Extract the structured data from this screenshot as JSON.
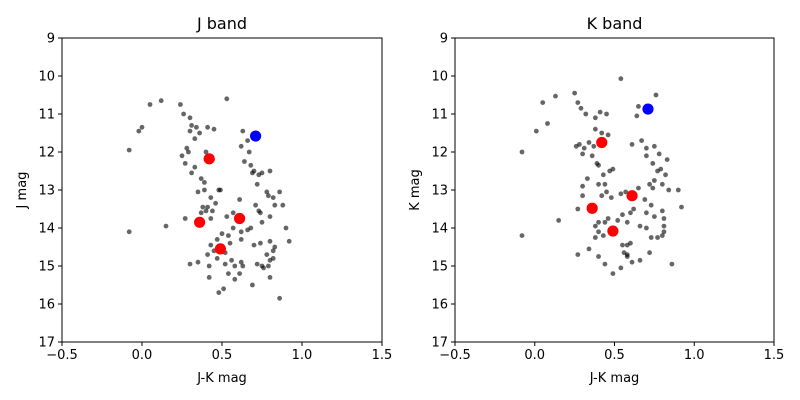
{
  "chart_data": [
    {
      "type": "scatter",
      "title": "J band",
      "xlabel": "J-K mag",
      "ylabel": "J mag",
      "xlim": [
        -0.5,
        1.5
      ],
      "ylim": [
        17,
        9
      ],
      "y_inverted": true,
      "xticks": [
        -0.5,
        0.0,
        0.5,
        1.0,
        1.5
      ],
      "xtick_labels": [
        "−0.5",
        "0.0",
        "0.5",
        "1.0",
        "1.5"
      ],
      "yticks": [
        9,
        10,
        11,
        12,
        13,
        14,
        15,
        16,
        17
      ],
      "ytick_labels": [
        "9",
        "10",
        "11",
        "12",
        "13",
        "14",
        "15",
        "16",
        "17"
      ],
      "grid": false,
      "series": [
        {
          "color": "#000000",
          "alpha": 0.6,
          "marker": "small",
          "points": [
            [
              0.12,
              10.65
            ],
            [
              0.05,
              10.75
            ],
            [
              0.24,
              10.75
            ],
            [
              -0.02,
              11.45
            ],
            [
              0.0,
              11.35
            ],
            [
              0.26,
              11.0
            ],
            [
              0.3,
              11.1
            ],
            [
              0.31,
              11.3
            ],
            [
              0.3,
              11.45
            ],
            [
              0.34,
              11.35
            ],
            [
              0.36,
              11.5
            ],
            [
              0.41,
              11.35
            ],
            [
              0.45,
              11.4
            ],
            [
              0.53,
              10.6
            ],
            [
              0.63,
              11.45
            ],
            [
              0.66,
              11.7
            ],
            [
              -0.08,
              11.95
            ],
            [
              0.33,
              11.65
            ],
            [
              0.28,
              11.9
            ],
            [
              0.25,
              12.1
            ],
            [
              0.29,
              12.0
            ],
            [
              0.27,
              12.3
            ],
            [
              0.4,
              12.0
            ],
            [
              0.44,
              12.2
            ],
            [
              0.62,
              11.85
            ],
            [
              0.67,
              12.0
            ],
            [
              0.64,
              12.25
            ],
            [
              0.69,
              12.55
            ],
            [
              0.68,
              12.35
            ],
            [
              0.7,
              12.5
            ],
            [
              0.73,
              12.6
            ],
            [
              0.75,
              12.55
            ],
            [
              0.8,
              12.5
            ],
            [
              0.72,
              12.85
            ],
            [
              0.78,
              13.05
            ],
            [
              0.79,
              13.15
            ],
            [
              0.82,
              13.2
            ],
            [
              0.86,
              13.05
            ],
            [
              0.83,
              13.4
            ],
            [
              0.88,
              13.4
            ],
            [
              0.33,
              12.4
            ],
            [
              0.31,
              12.55
            ],
            [
              0.37,
              12.7
            ],
            [
              0.39,
              12.8
            ],
            [
              0.35,
              13.05
            ],
            [
              0.39,
              13.0
            ],
            [
              0.48,
              13.0
            ],
            [
              0.49,
              13.0
            ],
            [
              0.43,
              13.2
            ],
            [
              0.46,
              13.35
            ],
            [
              0.38,
              13.45
            ],
            [
              0.41,
              13.45
            ],
            [
              0.44,
              13.55
            ],
            [
              0.37,
              13.6
            ],
            [
              0.43,
              13.75
            ],
            [
              0.53,
              13.7
            ],
            [
              0.61,
              13.25
            ],
            [
              0.57,
              13.6
            ],
            [
              0.71,
              13.4
            ],
            [
              0.73,
              13.55
            ],
            [
              0.74,
              13.6
            ],
            [
              0.8,
              13.7
            ],
            [
              0.75,
              13.85
            ],
            [
              0.68,
              14.0
            ],
            [
              0.62,
              14.1
            ],
            [
              0.57,
              14.0
            ],
            [
              0.5,
              14.15
            ],
            [
              0.47,
              14.3
            ],
            [
              0.54,
              14.2
            ],
            [
              0.62,
              14.3
            ],
            [
              0.55,
              14.4
            ],
            [
              0.43,
              14.45
            ],
            [
              0.41,
              14.7
            ],
            [
              0.42,
              15.0
            ],
            [
              0.35,
              14.9
            ],
            [
              0.3,
              14.95
            ],
            [
              0.27,
              13.75
            ],
            [
              0.15,
              13.95
            ],
            [
              -0.08,
              14.1
            ],
            [
              0.4,
              13.55
            ],
            [
              0.45,
              14.6
            ],
            [
              0.47,
              14.8
            ],
            [
              0.52,
              14.65
            ],
            [
              0.56,
              14.85
            ],
            [
              0.58,
              15.0
            ],
            [
              0.62,
              14.9
            ],
            [
              0.63,
              15.0
            ],
            [
              0.7,
              14.45
            ],
            [
              0.72,
              14.95
            ],
            [
              0.75,
              15.0
            ],
            [
              0.78,
              14.7
            ],
            [
              0.8,
              14.85
            ],
            [
              0.79,
              15.0
            ],
            [
              0.82,
              14.6
            ],
            [
              0.83,
              14.5
            ],
            [
              0.82,
              14.8
            ],
            [
              0.8,
              14.35
            ],
            [
              0.9,
              14.0
            ],
            [
              0.92,
              14.35
            ],
            [
              0.54,
              15.2
            ],
            [
              0.42,
              15.3
            ],
            [
              0.51,
              15.6
            ],
            [
              0.48,
              15.7
            ],
            [
              0.58,
              15.35
            ],
            [
              0.61,
              15.2
            ],
            [
              0.69,
              15.5
            ],
            [
              0.86,
              15.85
            ],
            [
              0.8,
              15.3
            ],
            [
              0.76,
              15.05
            ],
            [
              0.52,
              14.95
            ],
            [
              0.74,
              14.4
            ],
            [
              0.66,
              14.05
            ]
          ]
        },
        {
          "color": "#ff0000",
          "marker": "large",
          "points": [
            [
              0.42,
              12.18
            ],
            [
              0.36,
              13.85
            ],
            [
              0.61,
              13.75
            ],
            [
              0.49,
              14.55
            ]
          ]
        },
        {
          "color": "#0000ff",
          "marker": "large",
          "points": [
            [
              0.71,
              11.58
            ]
          ]
        }
      ]
    },
    {
      "type": "scatter",
      "title": "K band",
      "xlabel": "J-K mag",
      "ylabel": "K mag",
      "xlim": [
        -0.5,
        1.5
      ],
      "ylim": [
        17,
        9
      ],
      "y_inverted": true,
      "xticks": [
        -0.5,
        0.0,
        0.5,
        1.0,
        1.5
      ],
      "xtick_labels": [
        "−0.5",
        "0.0",
        "0.5",
        "1.0",
        "1.5"
      ],
      "yticks": [
        9,
        10,
        11,
        12,
        13,
        14,
        15,
        16,
        17
      ],
      "ytick_labels": [
        "9",
        "10",
        "11",
        "12",
        "13",
        "14",
        "15",
        "16",
        "17"
      ],
      "grid": false,
      "series": [
        {
          "color": "#000000",
          "alpha": 0.6,
          "marker": "small",
          "points": [
            [
              0.54,
              10.07
            ],
            [
              0.25,
              10.45
            ],
            [
              0.13,
              10.53
            ],
            [
              0.05,
              10.7
            ],
            [
              0.27,
              10.7
            ],
            [
              0.76,
              10.5
            ],
            [
              0.65,
              10.8
            ],
            [
              0.64,
              11.05
            ],
            [
              0.29,
              10.85
            ],
            [
              0.32,
              11.0
            ],
            [
              0.38,
              11.1
            ],
            [
              0.41,
              10.95
            ],
            [
              0.45,
              11.0
            ],
            [
              0.01,
              11.45
            ],
            [
              0.08,
              11.25
            ],
            [
              0.38,
              11.4
            ],
            [
              0.42,
              11.5
            ],
            [
              0.46,
              11.55
            ],
            [
              0.34,
              11.75
            ],
            [
              0.28,
              11.8
            ],
            [
              0.31,
              11.9
            ],
            [
              0.26,
              11.85
            ],
            [
              0.37,
              11.85
            ],
            [
              0.3,
              12.05
            ],
            [
              0.39,
              12.3
            ],
            [
              0.4,
              12.35
            ],
            [
              0.36,
              12.1
            ],
            [
              0.47,
              12.5
            ],
            [
              0.49,
              12.45
            ],
            [
              0.61,
              11.8
            ],
            [
              0.67,
              11.7
            ],
            [
              0.7,
              11.9
            ],
            [
              0.75,
              11.85
            ],
            [
              0.78,
              12.05
            ],
            [
              0.7,
              12.1
            ],
            [
              0.74,
              12.3
            ],
            [
              0.77,
              12.5
            ],
            [
              0.79,
              12.45
            ],
            [
              0.83,
              12.2
            ],
            [
              0.82,
              12.6
            ],
            [
              0.75,
              12.75
            ],
            [
              0.72,
              12.85
            ],
            [
              0.74,
              12.95
            ],
            [
              0.8,
              12.85
            ],
            [
              0.84,
              13.0
            ],
            [
              0.9,
              13.0
            ],
            [
              0.92,
              13.45
            ],
            [
              0.8,
              13.55
            ],
            [
              0.73,
              13.4
            ],
            [
              0.7,
              13.6
            ],
            [
              0.75,
              13.7
            ],
            [
              0.81,
              13.75
            ],
            [
              0.81,
              13.95
            ],
            [
              0.81,
              14.1
            ],
            [
              0.8,
              14.2
            ],
            [
              0.77,
              14.25
            ],
            [
              0.73,
              14.25
            ],
            [
              0.7,
              14.0
            ],
            [
              0.66,
              13.95
            ],
            [
              0.62,
              13.5
            ],
            [
              0.6,
              13.6
            ],
            [
              0.58,
              13.85
            ],
            [
              0.55,
              13.65
            ],
            [
              0.52,
              13.8
            ],
            [
              0.46,
              13.75
            ],
            [
              0.44,
              13.85
            ],
            [
              0.4,
              13.85
            ],
            [
              0.38,
              13.95
            ],
            [
              0.4,
              14.1
            ],
            [
              0.43,
              14.2
            ],
            [
              0.38,
              14.25
            ],
            [
              0.34,
              14.55
            ],
            [
              0.27,
              14.7
            ],
            [
              0.4,
              14.75
            ],
            [
              0.44,
              14.95
            ],
            [
              0.49,
              15.2
            ],
            [
              0.54,
              15.05
            ],
            [
              0.56,
              14.65
            ],
            [
              0.58,
              14.75
            ],
            [
              0.61,
              14.9
            ],
            [
              0.58,
              14.45
            ],
            [
              0.6,
              14.4
            ],
            [
              0.55,
              14.45
            ],
            [
              0.66,
              14.85
            ],
            [
              0.72,
              14.65
            ],
            [
              0.86,
              14.95
            ],
            [
              -0.08,
              14.2
            ],
            [
              0.15,
              13.8
            ],
            [
              0.27,
              13.5
            ],
            [
              0.3,
              12.9
            ],
            [
              0.33,
              12.7
            ],
            [
              0.43,
              12.6
            ],
            [
              0.44,
              12.85
            ],
            [
              0.4,
              12.85
            ],
            [
              0.45,
              13.05
            ],
            [
              0.48,
              13.2
            ],
            [
              0.54,
              13.1
            ],
            [
              0.65,
              12.95
            ],
            [
              0.69,
              13.25
            ],
            [
              0.57,
              13.05
            ],
            [
              0.3,
              13.15
            ],
            [
              0.42,
              13.15
            ],
            [
              -0.08,
              12.0
            ],
            [
              0.58,
              14.7
            ]
          ]
        },
        {
          "color": "#ff0000",
          "marker": "large",
          "points": [
            [
              0.42,
              11.75
            ],
            [
              0.36,
              13.48
            ],
            [
              0.61,
              13.15
            ],
            [
              0.49,
              14.08
            ]
          ]
        },
        {
          "color": "#0000ff",
          "marker": "large",
          "points": [
            [
              0.71,
              10.87
            ]
          ]
        }
      ]
    }
  ]
}
